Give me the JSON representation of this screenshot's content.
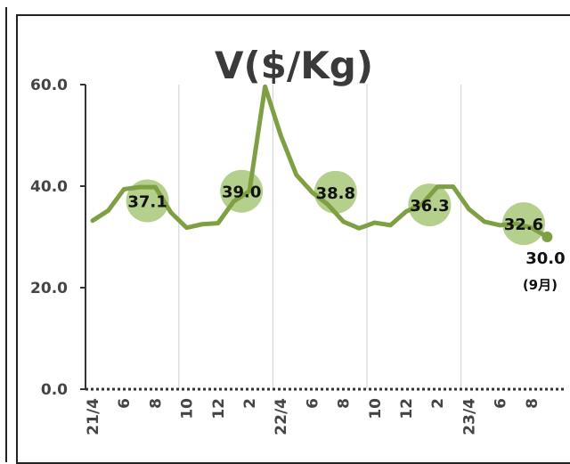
{
  "chart_data": {
    "type": "line",
    "title": "V($/Kg)",
    "ylim": [
      0,
      60
    ],
    "y_ticks": [
      "0.0",
      "20.0",
      "40.0",
      "60.0"
    ],
    "x_tick_labels": [
      "21/4",
      "6",
      "8",
      "10",
      "12",
      "2",
      "22/4",
      "6",
      "8",
      "10",
      "12",
      "2",
      "23/4",
      "6",
      "8"
    ],
    "grid": "vertical",
    "colors": {
      "line": "#7f9f43",
      "bubble": "#b5cf8c"
    },
    "series": [
      {
        "values": [
          33.2,
          35.2,
          39.4,
          39.8,
          39.8,
          34.8,
          31.8,
          32.5,
          32.7,
          37.0,
          39.0,
          59.6,
          50.0,
          42.2,
          38.8,
          36.4,
          33.0,
          31.7,
          32.8,
          32.3,
          35.0,
          36.4,
          39.9,
          39.9,
          35.5,
          33.0,
          32.3,
          32.6,
          31.8,
          30.0
        ]
      }
    ],
    "annotations": [
      {
        "label": "37.1",
        "index": 3.5,
        "value": 37.1
      },
      {
        "label": "39.0",
        "index": 9.5,
        "value": 39.0
      },
      {
        "label": "38.8",
        "index": 15.5,
        "value": 38.8
      },
      {
        "label": "36.3",
        "index": 21.5,
        "value": 36.3
      },
      {
        "label": "32.6",
        "index": 27.5,
        "value": 32.6
      }
    ],
    "last_point": {
      "label": "30.0",
      "note": "(9月)",
      "index": 29,
      "value": 30.0
    }
  }
}
